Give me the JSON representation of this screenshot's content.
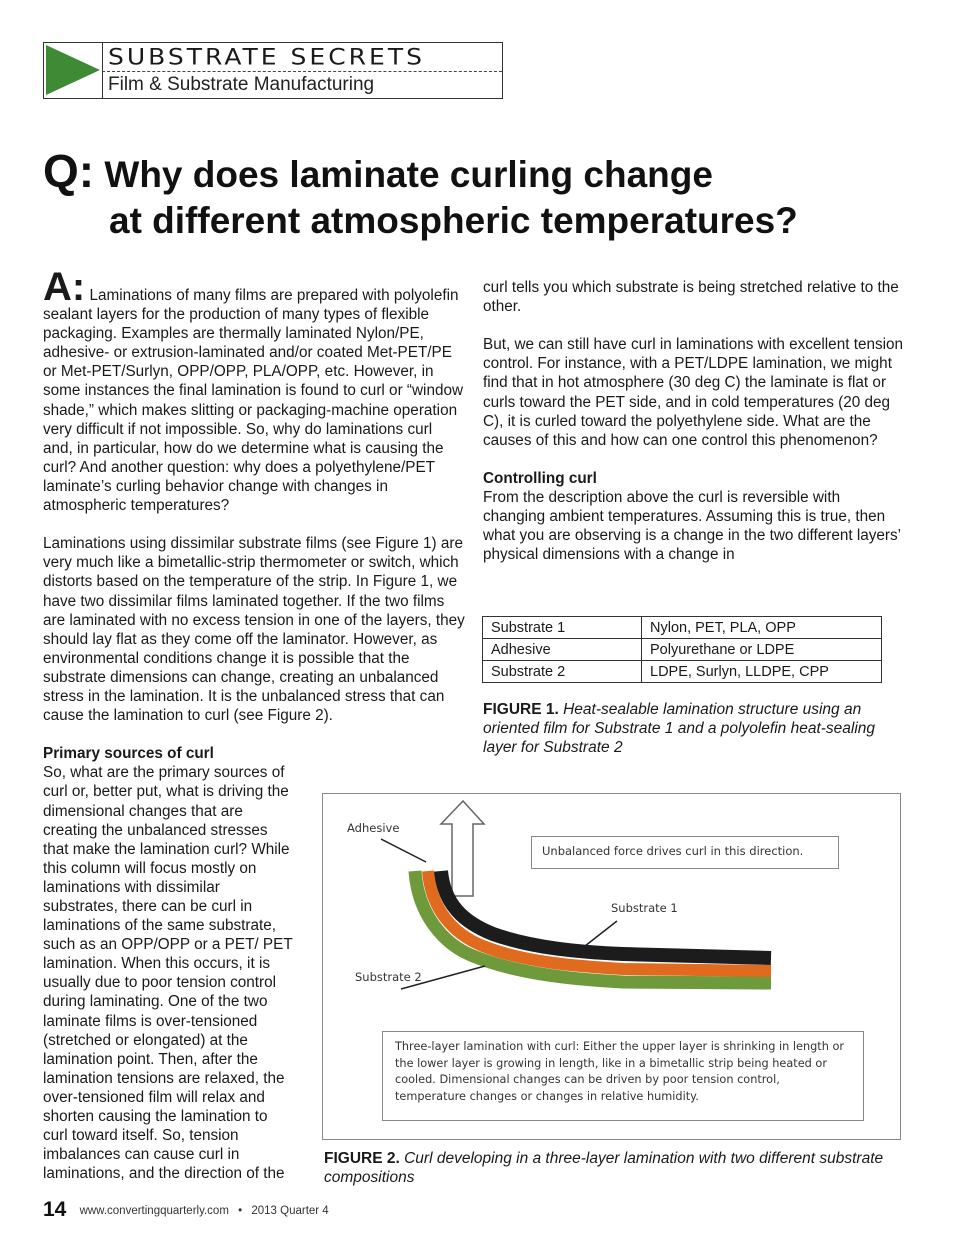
{
  "header": {
    "series": "SUBSTRATE SECRETS",
    "subtitle": "Film & Substrate Manufacturing"
  },
  "title": {
    "q": "Q:",
    "line1": "Why does laminate curling change",
    "line2": "at different atmospheric temperatures?"
  },
  "left": {
    "a": "A:",
    "p1": "Laminations of many films are prepared with polyolefin sealant layers for the production of many types of flexible packaging. Examples are thermally laminated Nylon/PE, adhesive- or extrusion-laminated and/or coated Met-PET/PE or Met-PET/Surlyn, OPP/OPP, PLA/OPP, etc. However, in some instances the final lamination is found to curl or “window shade,” which makes slitting or packaging-machine operation very difficult if not impossible. So, why do laminations curl and, in particular, how do we determine what is causing the curl? And another question: why does a polyethylene/PET laminate’s curling behavior change with changes in atmospheric temperatures?",
    "p2": "Laminations using dissimilar substrate films (see Figure 1) are very much like a bimetallic-strip thermometer or switch, which distorts based on the temperature of the strip. In Figure 1, we have two dissimilar films laminated together. If the two films are laminated with no excess tension in one of the layers, they should lay flat as they come off the laminator. However, as environmental conditions change it is possible that the substrate dimensions can change, creating an unbalanced stress in the lamination. It is the unbalanced stress that can cause the lamination to curl (see Figure 2).",
    "h_primary": "Primary sources of curl",
    "p3": "So, what are the primary sources of curl or, better put, what is driving the dimensional changes that are creating the unbalanced stresses that make the lamination curl? While this column will focus mostly on laminations with dissimilar substrates, there can be curl in laminations of the same substrate, such as an OPP/OPP or a PET/ PET lamination. When this occurs, it is usually due to poor tension control during laminating. One of the two laminate films is over-tensioned (stretched or elongated) at the lamination point. Then, after the lamination tensions are relaxed, the over-tensioned film will relax and shorten causing the lamination to curl toward itself. So, tension imbalances can cause curl in laminations, and the direction of the"
  },
  "right": {
    "p1": "curl tells you which substrate is being stretched relative to the other.",
    "p2": "But, we can still have curl in laminations with excellent tension control. For instance, with a PET/LDPE lamination, we might find that in hot atmosphere (30 deg C) the laminate is flat or curls toward the PET side, and in cold temperatures (20 deg C), it is curled toward the polyethylene side. What are the causes of this and how can one control this phenomenon?",
    "h_controlling": "Controlling curl",
    "p3": "From the description above the curl is reversible with changing ambient temperatures. Assuming this is true, then what you are observing is a change in the two different layers’ physical dimensions with a change in"
  },
  "figure1": {
    "rows": [
      [
        "Substrate 1",
        "Nylon, PET, PLA, OPP"
      ],
      [
        "Adhesive",
        "Polyurethane or LDPE"
      ],
      [
        "Substrate 2",
        "LDPE, Surlyn, LLDPE, CPP"
      ]
    ],
    "label": "FIGURE 1.",
    "caption": "Heat-sealable lamination structure using an oriented film for Substrate 1 and a polyolefin heat-sealing layer for Substrate 2"
  },
  "figure2": {
    "adhesive": "Adhesive",
    "substrate1": "Substrate 1",
    "substrate2": "Substrate 2",
    "force_note": "Unbalanced force drives curl in this direction.",
    "explanation": "Three-layer lamination with curl: Either the upper layer is shrinking in length or the lower layer is growing in length, like in a bimetallic strip being heated or cooled. Dimensional changes can be driven by poor tension control, temperature changes or changes in relative humidity.",
    "colors": {
      "substrate1": "#1c1c1c",
      "adhesive": "#e06a1e",
      "substrate2": "#6e9a3c"
    },
    "label": "FIGURE 2.",
    "caption": "Curl developing in a three-layer lamination with two different substrate compositions"
  },
  "footer": {
    "page": "14",
    "url": "www.convertingquarterly.com",
    "sep": "•",
    "issue": "2013 Quarter 4"
  }
}
